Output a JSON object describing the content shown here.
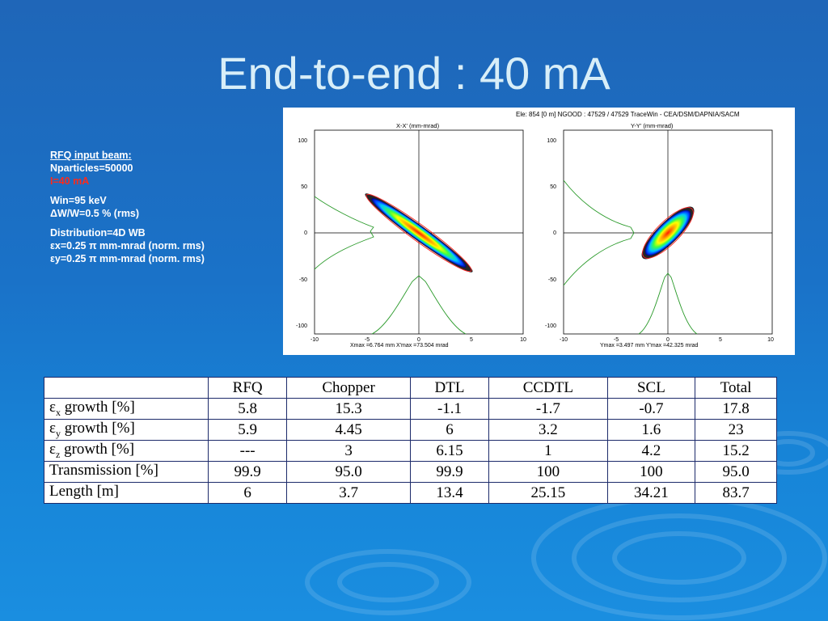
{
  "slide": {
    "title": "End-to-end : 40 mA"
  },
  "info": {
    "heading": "RFQ input beam:",
    "nparticles": "Nparticles=50000",
    "current": "I=40 mA",
    "energy": "Win=95 keV",
    "spread": "ΔW/W=0.5 % (rms)",
    "distribution": "Distribution=4D WB",
    "emit_x": "εx=0.25 π mm-mrad (norm. rms)",
    "emit_y": "εy=0.25 π mm-mrad (norm. rms)"
  },
  "plot": {
    "header": "Ele: 854 [0 m]    NGOOD : 47529 / 47529         TraceWin - CEA/DSM/DAPNIA/SACM",
    "left": {
      "title": "X-X' (mm-mrad)",
      "footer": "Xmax =6.764 mm  X'max =73.504 mrad",
      "xticks": [
        "-10",
        "-5",
        "0",
        "5",
        "10"
      ],
      "yticks": [
        "100",
        "50",
        "0",
        "-50",
        "-100"
      ]
    },
    "right": {
      "title": "Y-Y' (mm-mrad)",
      "footer": "Ymax =3.497 mm  Y'max =42.325 mrad",
      "xticks": [
        "-10",
        "-5",
        "0",
        "5",
        "10"
      ],
      "yticks": [
        "100",
        "50",
        "0",
        "-50",
        "-100"
      ]
    }
  },
  "table": {
    "headers": [
      "",
      "RFQ",
      "Chopper",
      "DTL",
      "CCDTL",
      "SCL",
      "Total"
    ],
    "rows": [
      {
        "sym": "ε",
        "sub": "x",
        "label": " growth [%]",
        "values": [
          "5.8",
          "15.3",
          "-1.1",
          "-1.7",
          "-0.7",
          "17.8"
        ]
      },
      {
        "sym": "ε",
        "sub": "y",
        "label": " growth [%]",
        "values": [
          "5.9",
          "4.45",
          "6",
          "3.2",
          "1.6",
          "23"
        ]
      },
      {
        "sym": "ε",
        "sub": "z",
        "label": " growth [%]",
        "values": [
          "---",
          "3",
          "6.15",
          "1",
          "4.2",
          "15.2"
        ]
      },
      {
        "sym": "",
        "sub": "",
        "label": "Transmission [%]",
        "values": [
          "99.9",
          "95.0",
          "99.9",
          "100",
          "100",
          "95.0"
        ]
      },
      {
        "sym": "",
        "sub": "",
        "label": "Length [m]",
        "values": [
          "6",
          "3.7",
          "13.4",
          "25.15",
          "34.21",
          "83.7"
        ]
      }
    ]
  },
  "colors": {
    "background": "#1a72c8",
    "title_text": "#d8eef8",
    "highlight": "#ff2a1a"
  }
}
